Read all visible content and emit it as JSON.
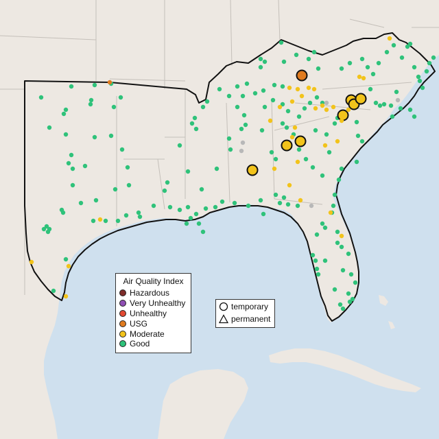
{
  "legend": {
    "title": "Air Quality Index",
    "categories": [
      {
        "label": "Hazardous",
        "color": "#7e2d2a"
      },
      {
        "label": "Very Unhealthy",
        "color": "#8f4fb3"
      },
      {
        "label": "Unhealthy",
        "color": "#e34a33"
      },
      {
        "label": "USG",
        "color": "#e07b1f"
      },
      {
        "label": "Moderate",
        "color": "#f2c31b"
      },
      {
        "label": "Good",
        "color": "#2fc27a"
      }
    ]
  },
  "site_legend": {
    "temporary": "temporary",
    "permanent": "permanent"
  },
  "colors": {
    "ocean": "#cfe0ee",
    "land": "#ede8e2",
    "border": "#111111",
    "state_lines": "#b9b4ae",
    "no_data": "#b8b8b8"
  }
}
